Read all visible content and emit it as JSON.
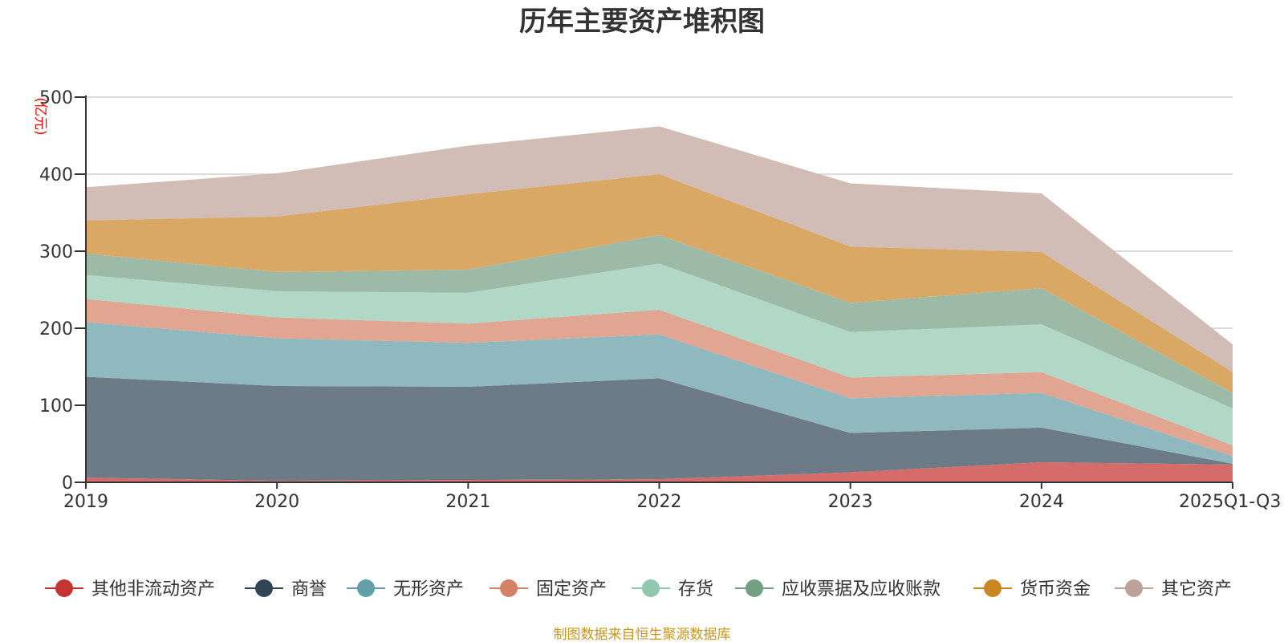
{
  "chart_data": {
    "type": "area",
    "stacked": true,
    "title": "历年主要资产堆积图",
    "unit_label": "(亿元)",
    "categories": [
      "2019",
      "2020",
      "2021",
      "2022",
      "2023",
      "2024",
      "2025Q1-Q3"
    ],
    "y_ticks": [
      "0",
      "100",
      "200",
      "300",
      "400",
      "500"
    ],
    "ylim": [
      0,
      500
    ],
    "grid": true,
    "legend_position": "bottom",
    "series": [
      {
        "name": "其他非流动资产",
        "color": "#c23531",
        "fill": "#d56c6a",
        "values": [
          6,
          2,
          3,
          4,
          13,
          26,
          23
        ]
      },
      {
        "name": "商誉",
        "color": "#2f4554",
        "fill": "#6c7b86",
        "values": [
          131,
          123,
          121,
          131,
          51,
          45,
          1
        ]
      },
      {
        "name": "无形资产",
        "color": "#61a0a8",
        "fill": "#8fb9bf",
        "values": [
          71,
          62,
          57,
          57,
          45,
          45,
          10
        ]
      },
      {
        "name": "固定资产",
        "color": "#d48265",
        "fill": "#e0a691",
        "values": [
          30,
          27,
          25,
          32,
          27,
          27,
          14
        ]
      },
      {
        "name": "存货",
        "color": "#91c7ae",
        "fill": "#b1d8c6",
        "values": [
          31,
          34,
          40,
          60,
          59,
          62,
          48
        ]
      },
      {
        "name": "应收票据及应收账款",
        "color": "#749f83",
        "fill": "#9dbaa7",
        "values": [
          28,
          25,
          30,
          37,
          38,
          47,
          20
        ]
      },
      {
        "name": "货币资金",
        "color": "#ca8622",
        "fill": "#d9a864",
        "values": [
          43,
          72,
          98,
          79,
          73,
          47,
          27
        ]
      },
      {
        "name": "其它资产",
        "color": "#bda29a",
        "fill": "#d1bcb6",
        "values": [
          43,
          56,
          63,
          62,
          82,
          76,
          36
        ]
      }
    ],
    "source_note": "制图数据来自恒生聚源数据库"
  }
}
